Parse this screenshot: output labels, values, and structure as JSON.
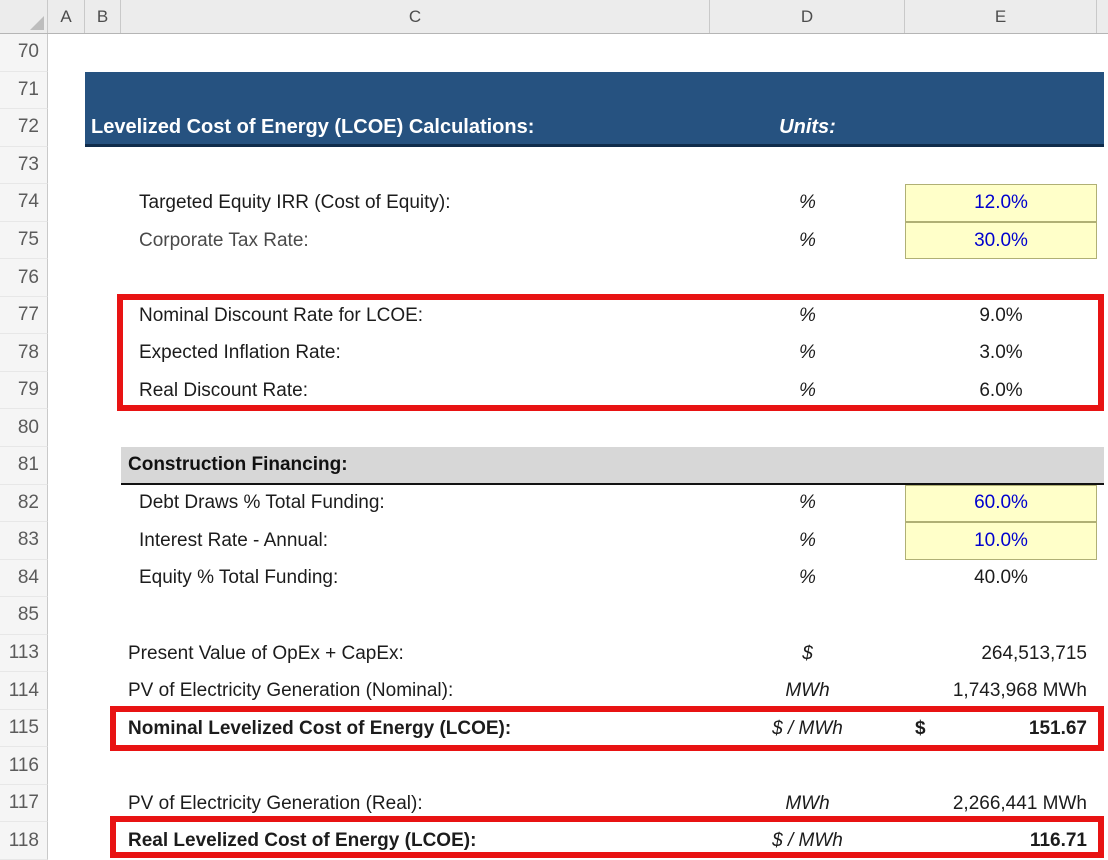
{
  "column_headers": [
    "A",
    "B",
    "C",
    "D",
    "E"
  ],
  "title_bar": {
    "title": "Levelized Cost of Energy (LCOE) Calculations:",
    "units_label": "Units:"
  },
  "colors": {
    "header_blue": "#265280",
    "input_cell_bg": "#FFFFC9",
    "input_cell_text": "#0000CE",
    "highlight_red": "#E81313",
    "section_gray": "#D7D7D7"
  },
  "annotations": {
    "red_box_rows": [
      "77-79",
      "115",
      "118"
    ]
  },
  "rows": [
    {
      "num": "70"
    },
    {
      "num": "71"
    },
    {
      "num": "72"
    },
    {
      "num": "73"
    },
    {
      "num": "74",
      "label": "Targeted Equity IRR (Cost of Equity):",
      "unit": "%",
      "value": "12.0%",
      "input": true,
      "indent": 1
    },
    {
      "num": "75",
      "label": "Corporate Tax Rate:",
      "unit": "%",
      "value": "30.0%",
      "input": true,
      "indent": 1,
      "label_gray": true
    },
    {
      "num": "76"
    },
    {
      "num": "77",
      "label": "Nominal Discount Rate for LCOE:",
      "unit": "%",
      "value": "9.0%",
      "indent": 1
    },
    {
      "num": "78",
      "label": "Expected Inflation Rate:",
      "unit": "%",
      "value": "3.0%",
      "indent": 1
    },
    {
      "num": "79",
      "label": "Real Discount Rate:",
      "unit": "%",
      "value": "6.0%",
      "indent": 1
    },
    {
      "num": "80"
    },
    {
      "num": "81",
      "section": "Construction Financing:"
    },
    {
      "num": "82",
      "label": "Debt Draws % Total Funding:",
      "unit": "%",
      "value": "60.0%",
      "input": true,
      "indent": 1
    },
    {
      "num": "83",
      "label": "Interest Rate - Annual:",
      "unit": "%",
      "value": "10.0%",
      "input": true,
      "indent": 1
    },
    {
      "num": "84",
      "label": "Equity % Total Funding:",
      "unit": "%",
      "value": "40.0%",
      "indent": 1
    },
    {
      "num": "85"
    },
    {
      "num": "113",
      "label": "Present Value of OpEx + CapEx:",
      "unit": "$",
      "value": "264,513,715",
      "align": "right"
    },
    {
      "num": "114",
      "label": "PV of Electricity Generation (Nominal):",
      "unit": "MWh",
      "value": "1,743,968 MWh",
      "align": "right"
    },
    {
      "num": "115",
      "label": "Nominal Levelized Cost of Energy (LCOE):",
      "unit": "$ / MWh",
      "value": "151.67",
      "currency": "$",
      "align": "right",
      "bold": true
    },
    {
      "num": "116"
    },
    {
      "num": "117",
      "label": "PV of Electricity Generation (Real):",
      "unit": "MWh",
      "value": "2,266,441 MWh",
      "align": "right"
    },
    {
      "num": "118",
      "label": "Real Levelized Cost of Energy (LCOE):",
      "unit": "$ / MWh",
      "value": "116.71",
      "align": "right",
      "bold": true
    }
  ]
}
